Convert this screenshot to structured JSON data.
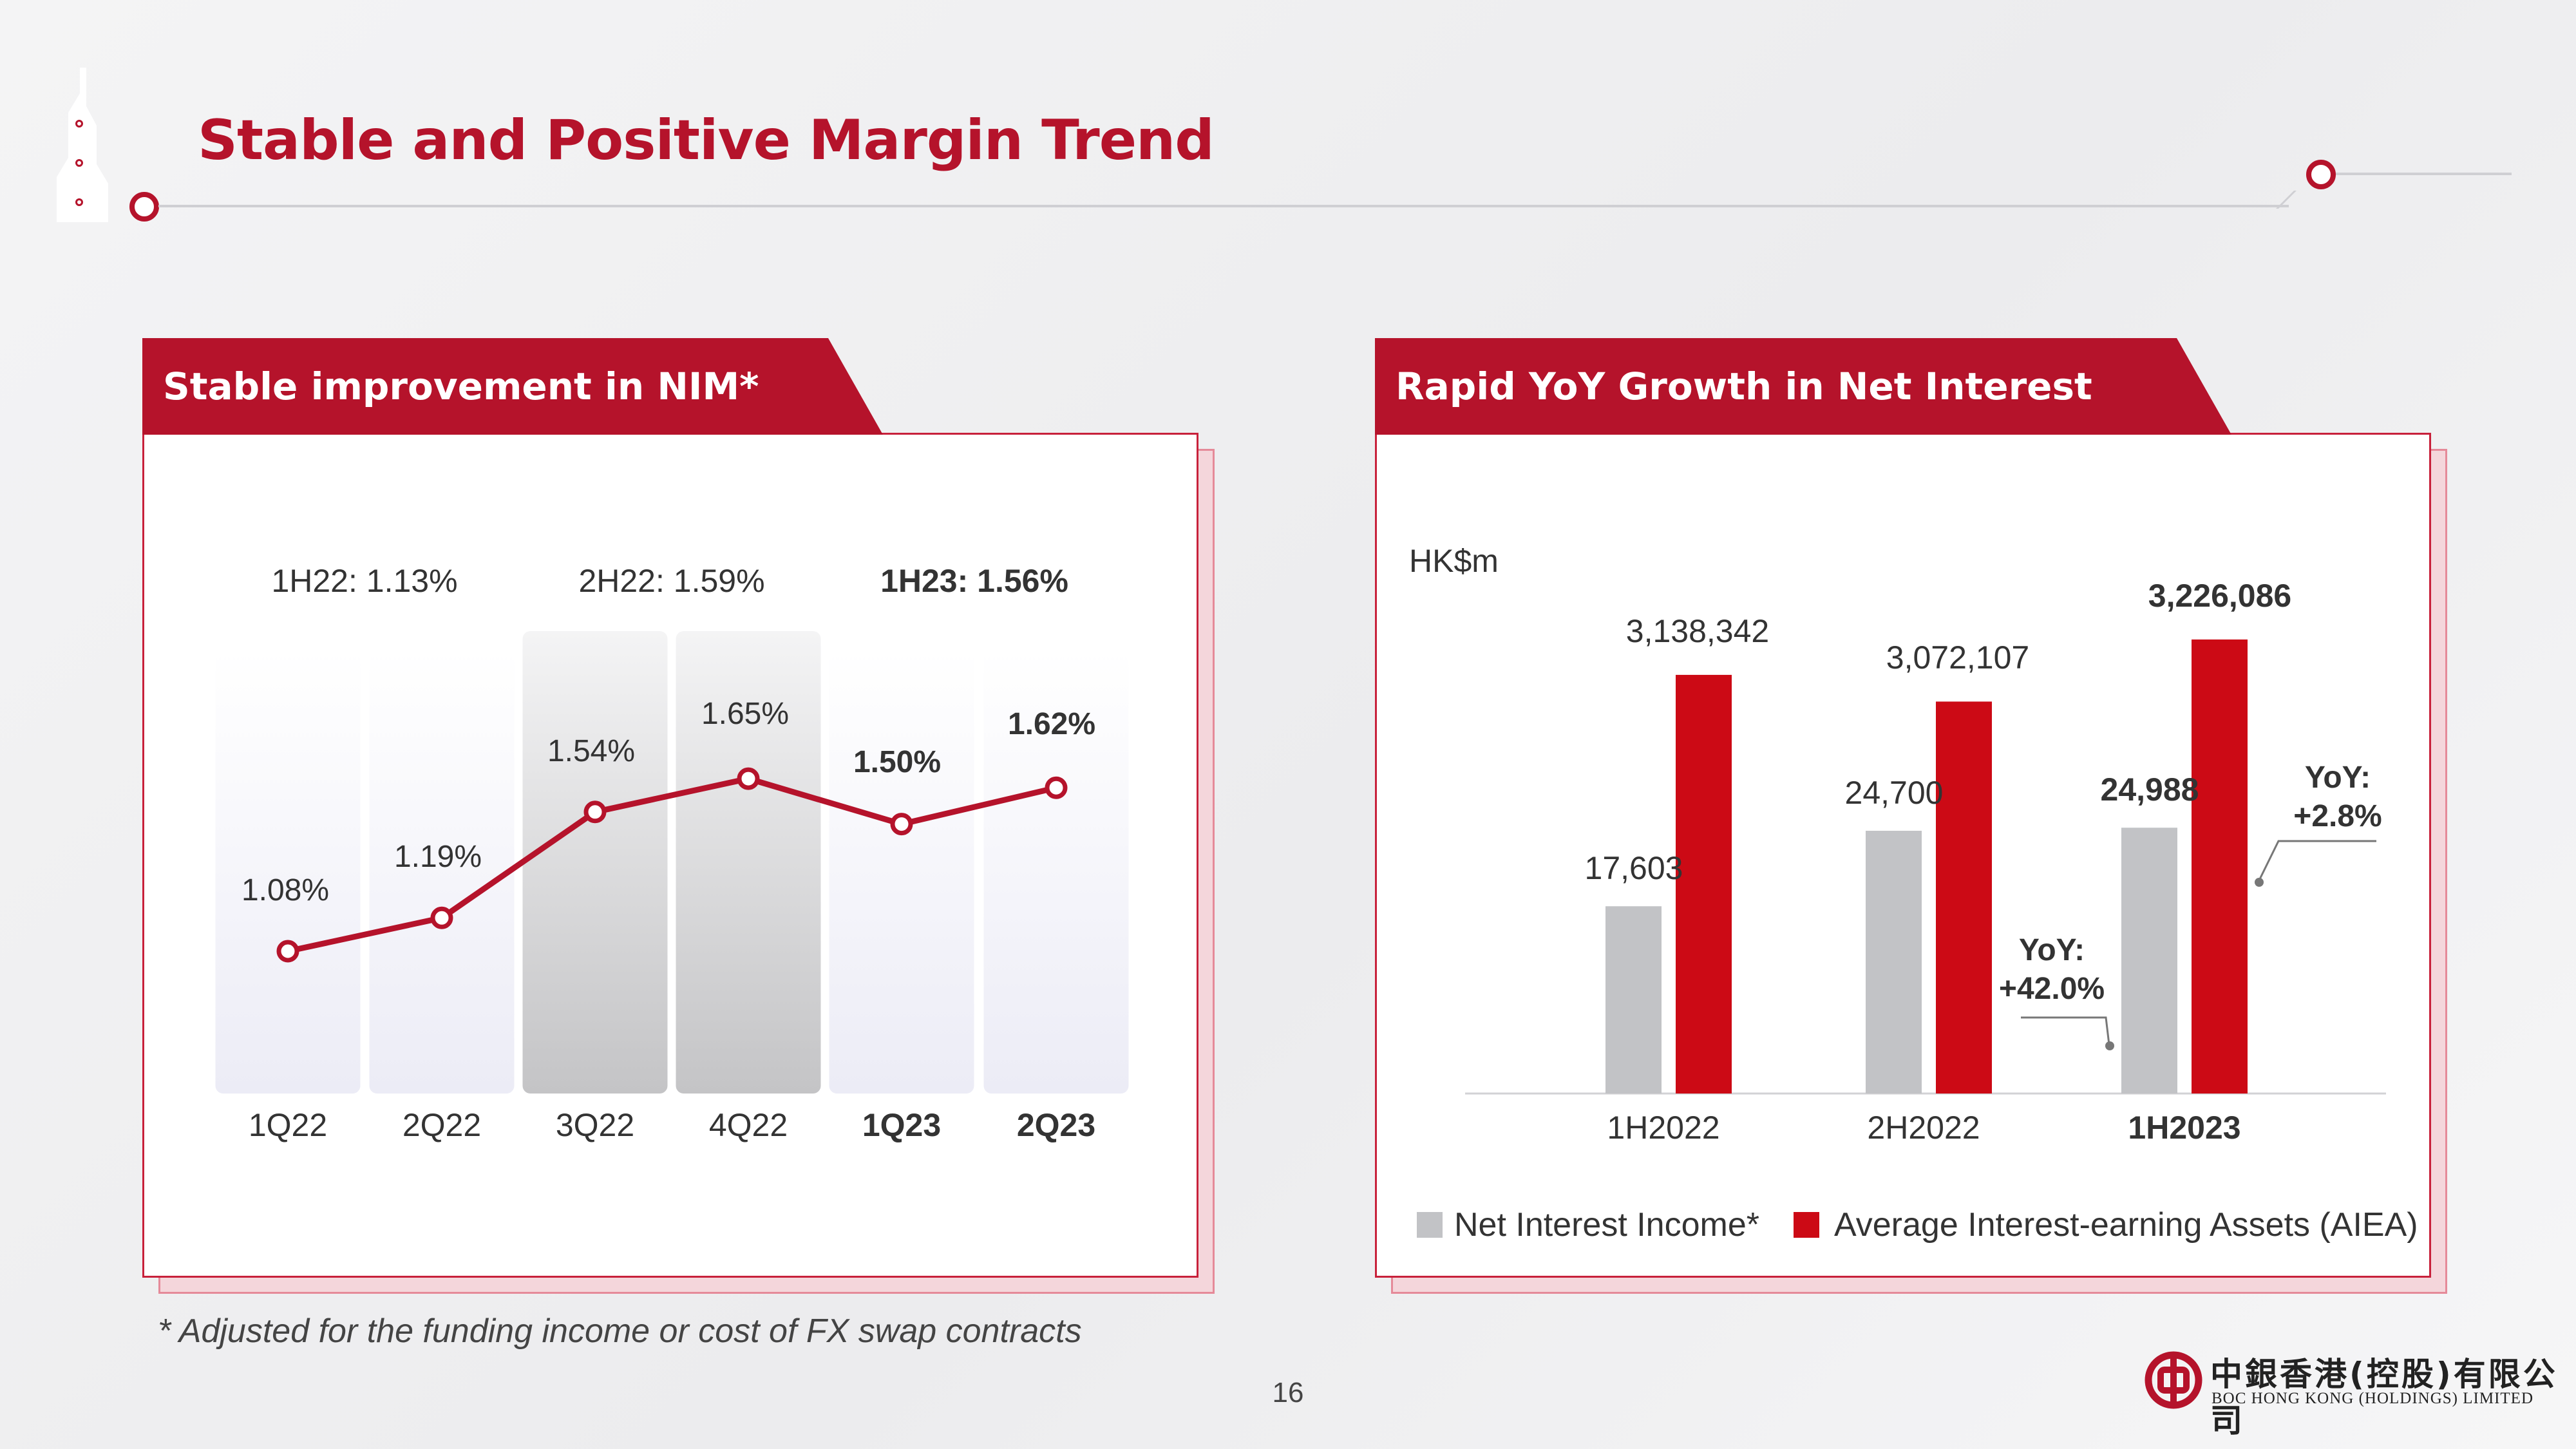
{
  "page": {
    "title": "Stable and Positive Margin Trend",
    "footnote": "* Adjusted for the funding income or cost of FX swap contracts",
    "page_number": "16",
    "logo": {
      "chinese": "中銀香港(控股)有限公司",
      "english": "BOC HONG KONG (HOLDINGS) LIMITED"
    }
  },
  "colors": {
    "brand_red": "#b5132b",
    "grey_bar": "#c2c3c6",
    "red_bar": "#cc0a15"
  },
  "chart_data": [
    {
      "type": "line",
      "title": "Stable improvement in NIM*",
      "categories": [
        "1Q22",
        "2Q22",
        "3Q22",
        "4Q22",
        "1Q23",
        "2Q23"
      ],
      "series": [
        {
          "values": [
            1.08,
            1.19,
            1.54,
            1.65,
            1.5,
            1.62
          ]
        }
      ],
      "data_labels": [
        "1.08%",
        "1.19%",
        "1.54%",
        "1.65%",
        "1.50%",
        "1.62%"
      ],
      "half_year_labels": [
        "1H22: 1.13%",
        "2H22: 1.59%",
        "1H23: 1.56%"
      ],
      "ylim": [
        1.0,
        1.8
      ],
      "grid": false
    },
    {
      "type": "bar",
      "title": "Rapid YoY Growth in Net Interest Income*",
      "ylabel": "HK$m",
      "categories": [
        "1H2022",
        "2H2022",
        "1H2023"
      ],
      "series": [
        {
          "name": "Net Interest Income*",
          "values": [
            17603,
            24700,
            24988
          ],
          "labels": [
            "17,603",
            "24,700",
            "24,988"
          ],
          "color": "#c2c3c6"
        },
        {
          "name": "Average Interest-earning Assets (AIEA)",
          "values": [
            3138342,
            3072107,
            3226086
          ],
          "labels": [
            "3,138,342",
            "3,072,107",
            "3,226,086"
          ],
          "color": "#cc0a15"
        }
      ],
      "annotations": [
        {
          "line1": "YoY:",
          "line2": "+42.0%"
        },
        {
          "line1": "YoY:",
          "line2": "+2.8%"
        }
      ],
      "legend_position": "bottom",
      "grid": false
    }
  ]
}
